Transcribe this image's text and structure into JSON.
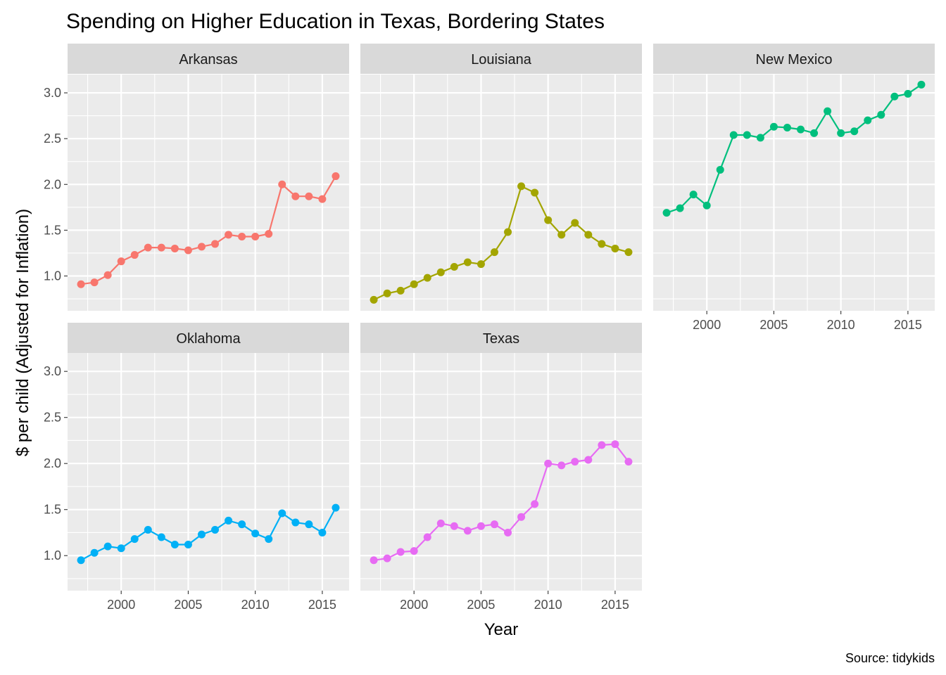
{
  "chart_data": {
    "type": "line",
    "title": "Spending on Higher Education in Texas, Bordering States",
    "xlabel": "Year",
    "ylabel": "$ per child (Adjusted for Inflation)",
    "caption": "Source: tidykids",
    "xlim": [
      1996,
      2017
    ],
    "ylim": [
      0.62,
      3.2
    ],
    "x_ticks": [
      2000,
      2005,
      2010,
      2015
    ],
    "y_ticks": [
      1.0,
      1.5,
      2.0,
      2.5,
      3.0
    ],
    "y_tick_labels": [
      "1.0",
      "1.5",
      "2.0",
      "2.5",
      "3.0"
    ],
    "x": [
      1997,
      1998,
      1999,
      2000,
      2001,
      2002,
      2003,
      2004,
      2005,
      2006,
      2007,
      2008,
      2009,
      2010,
      2011,
      2012,
      2013,
      2014,
      2015,
      2016
    ],
    "grid": true,
    "legend": "none",
    "facets": [
      {
        "name": "Arkansas",
        "color": "#F8766D",
        "values": [
          0.91,
          0.93,
          1.01,
          1.16,
          1.23,
          1.31,
          1.31,
          1.3,
          1.28,
          1.32,
          1.35,
          1.45,
          1.43,
          1.43,
          1.46,
          2.0,
          1.87,
          1.87,
          1.84,
          2.09
        ]
      },
      {
        "name": "Louisiana",
        "color": "#A3A500",
        "values": [
          0.74,
          0.81,
          0.84,
          0.91,
          0.98,
          1.04,
          1.1,
          1.15,
          1.13,
          1.26,
          1.48,
          1.98,
          1.91,
          1.61,
          1.45,
          1.58,
          1.45,
          1.35,
          1.3,
          1.26
        ]
      },
      {
        "name": "New Mexico",
        "color": "#00BF7D",
        "values": [
          1.69,
          1.74,
          1.89,
          1.77,
          2.16,
          2.54,
          2.54,
          2.51,
          2.63,
          2.62,
          2.6,
          2.56,
          2.8,
          2.56,
          2.58,
          2.7,
          2.76,
          2.96,
          2.99,
          3.09
        ]
      },
      {
        "name": "Oklahoma",
        "color": "#00B0F6",
        "values": [
          0.95,
          1.03,
          1.1,
          1.08,
          1.18,
          1.28,
          1.2,
          1.12,
          1.12,
          1.23,
          1.28,
          1.38,
          1.34,
          1.24,
          1.18,
          1.46,
          1.36,
          1.34,
          1.25,
          1.52
        ]
      },
      {
        "name": "Texas",
        "color": "#E76BF3",
        "values": [
          0.95,
          0.97,
          1.04,
          1.05,
          1.2,
          1.35,
          1.32,
          1.27,
          1.32,
          1.34,
          1.25,
          1.42,
          1.56,
          2.0,
          1.98,
          2.02,
          2.04,
          2.2,
          2.21,
          2.02
        ]
      }
    ]
  }
}
